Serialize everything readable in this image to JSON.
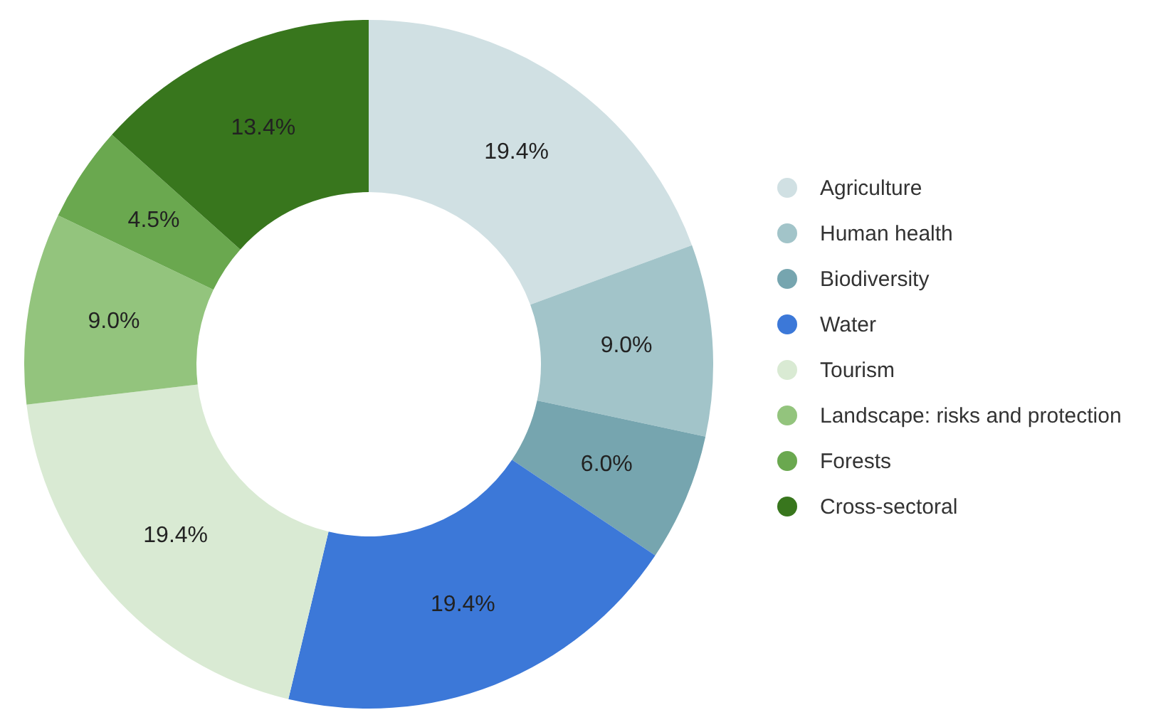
{
  "chart_data": {
    "type": "donut",
    "categories": [
      "Agriculture",
      "Human health",
      "Biodiversity",
      "Water",
      "Tourism",
      "Landscape: risks and protection",
      "Forests",
      "Cross-sectoral"
    ],
    "values": [
      19.4,
      9.0,
      6.0,
      19.4,
      19.4,
      9.0,
      4.5,
      13.4
    ],
    "value_labels": [
      "19.4%",
      "9.0%",
      "6.0%",
      "19.4%",
      "19.4%",
      "9.0%",
      "4.5%",
      "13.4%"
    ],
    "colors": [
      "#d0e0e3",
      "#a2c4c9",
      "#76a5af",
      "#3c78d8",
      "#d9ead3",
      "#93c47d",
      "#6aa84f",
      "#38761d"
    ],
    "legend": "right"
  }
}
